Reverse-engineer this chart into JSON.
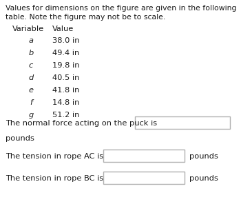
{
  "title_line1": "Values for dimensions on the figure are given in the following",
  "title_line2": "table. Note the figure may not be to scale.",
  "header_variable": "Variable",
  "header_value": "Value",
  "variables": [
    "a",
    "b",
    "c",
    "d",
    "e",
    "f",
    "g"
  ],
  "values": [
    "38.0 in",
    "49.4 in",
    "19.8 in",
    "40.5 in",
    "41.8 in",
    "14.8 in",
    "51.2 in"
  ],
  "question1_prefix": "The normal force acting on the puck is",
  "question1_suffix": "pounds",
  "question2_prefix": "The tension in rope AC is",
  "question2_suffix": "pounds",
  "question3_prefix": "The tension in rope BC is",
  "question3_suffix": "pounds",
  "bg_color": "#ffffff",
  "text_color": "#1a1a1a",
  "box_edge_color": "#b0b0b0",
  "font_size_title": 7.8,
  "font_size_table": 8.2,
  "font_size_questions": 8.2
}
